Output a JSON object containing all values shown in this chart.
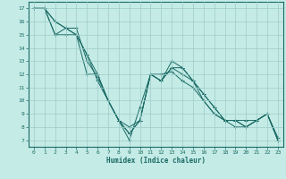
{
  "xlabel": "Humidex (Indice chaleur)",
  "ylabel": "",
  "bg_color": "#c5ebe7",
  "grid_color": "#9dccc8",
  "line_color": "#1a6b65",
  "xlim": [
    -0.5,
    23.5
  ],
  "ylim": [
    6.5,
    17.5
  ],
  "xticks": [
    0,
    1,
    2,
    3,
    4,
    5,
    6,
    7,
    8,
    9,
    10,
    11,
    12,
    13,
    14,
    15,
    16,
    17,
    18,
    19,
    20,
    21,
    22,
    23
  ],
  "yticks": [
    7,
    8,
    9,
    10,
    11,
    12,
    13,
    14,
    15,
    16,
    17
  ],
  "series": [
    [
      17,
      17,
      16,
      15.5,
      15,
      13.5,
      11.5,
      10,
      8.5,
      7.5,
      8.5,
      12,
      11.5,
      12.5,
      12.5,
      11.5,
      10.5,
      9.5,
      8.5,
      8.5,
      8.5,
      8.5,
      9,
      7
    ],
    [
      17,
      17,
      15,
      15,
      15,
      12,
      12,
      10,
      8.5,
      7,
      9.5,
      12,
      12,
      12.2,
      11.5,
      11,
      10,
      9,
      8.5,
      8,
      8,
      8.5,
      9,
      7.2
    ],
    [
      17,
      17,
      15,
      15.5,
      15.5,
      13,
      11.8,
      10,
      8.5,
      7.5,
      8.5,
      12,
      11.5,
      12.5,
      12,
      11.5,
      10,
      9,
      8.5,
      8.5,
      8,
      8.5,
      9,
      7
    ],
    [
      17,
      17,
      16,
      15.5,
      15,
      13.5,
      12,
      10,
      8.5,
      8,
      8.5,
      12,
      11.5,
      13,
      12.5,
      11.5,
      10.5,
      9.5,
      8.5,
      8.5,
      8,
      8.5,
      9,
      7
    ]
  ]
}
